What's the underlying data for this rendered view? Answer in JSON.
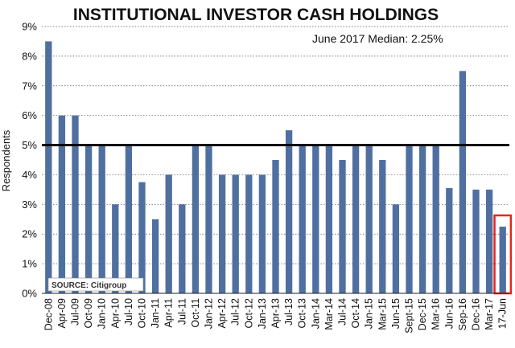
{
  "chart_data": {
    "type": "bar",
    "title": "INSTITUTIONAL INVESTOR CASH HOLDINGS",
    "ylabel": "Respondents",
    "xlabel": "",
    "annotation": "June 2017  Median: 2.25%",
    "source": "SOURCE: Citigroup",
    "ylim": [
      0,
      9
    ],
    "yticks": [
      "0%",
      "1%",
      "2%",
      "3%",
      "4%",
      "5%",
      "6%",
      "7%",
      "8%",
      "9%"
    ],
    "reference_line": 5,
    "grid": "horizontal dotted",
    "highlight_last": true,
    "x_tick_labels": [
      "Dec-08",
      "Apr-09",
      "Jul-09",
      "Oct-09",
      "Jan-10",
      "Apr-10",
      "Jul-10",
      "Oct-10",
      "Jan-11",
      "Apr-11",
      "Jul-11",
      "Oct-11",
      "Jan-12",
      "Apr-12",
      "Jul-12",
      "Oct-12",
      "Jan-13",
      "Apr-13",
      "Jul-13",
      "Oct-13",
      "Jan-14",
      "Mar-14",
      "Jul-14",
      "Oct-14",
      "Jan-15",
      "Mar-15",
      "Jun-15",
      "Sept-15",
      "Dec-15",
      "Mar-16",
      "Jun-16",
      "Sep-16",
      "Dec-16",
      "Mar-17",
      "17-Jun"
    ],
    "values": [
      8.5,
      6,
      6,
      5,
      5,
      3,
      5,
      3.75,
      2.5,
      4,
      3,
      5,
      5,
      4,
      4,
      4,
      4,
      4.5,
      5.5,
      5,
      5,
      5,
      4.5,
      5,
      5,
      4.5,
      3,
      5,
      5,
      5,
      3.55,
      7.5,
      3.5,
      3.5,
      2.25
    ],
    "colors": {
      "bar": "#4f6fa0",
      "reference": "#000000",
      "highlight": "#e8261b",
      "grid": "#555555"
    }
  }
}
